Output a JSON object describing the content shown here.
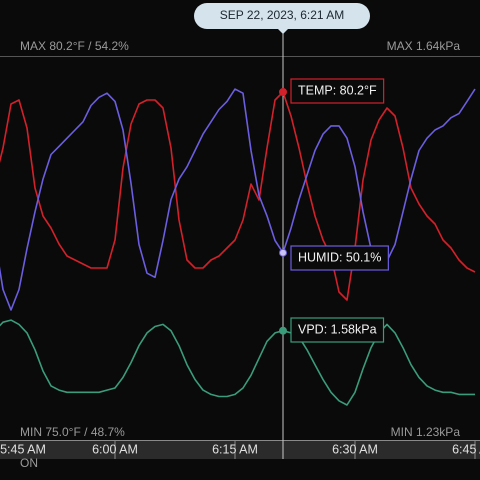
{
  "chart_data": {
    "type": "line",
    "cursor_label": "SEP 22, 2023, 6:21 AM",
    "cursor": "6:21 AM",
    "max_label": "MAX 80.2°F / 54.2%",
    "max_label_right": "MAX 1.64kPa",
    "min_label": "MIN 75.0°F / 48.7%",
    "min_label_right": "MIN 1.23kPa",
    "status": "ON",
    "x": [
      "5:45 AM",
      "5:46 AM",
      "5:47 AM",
      "5:48 AM",
      "5:49 AM",
      "5:50 AM",
      "5:51 AM",
      "5:52 AM",
      "5:53 AM",
      "5:54 AM",
      "5:55 AM",
      "5:56 AM",
      "5:57 AM",
      "5:58 AM",
      "5:59 AM",
      "6:00 AM",
      "6:01 AM",
      "6:02 AM",
      "6:03 AM",
      "6:04 AM",
      "6:05 AM",
      "6:06 AM",
      "6:07 AM",
      "6:08 AM",
      "6:09 AM",
      "6:10 AM",
      "6:11 AM",
      "6:12 AM",
      "6:13 AM",
      "6:14 AM",
      "6:15 AM",
      "6:16 AM",
      "6:17 AM",
      "6:18 AM",
      "6:19 AM",
      "6:20 AM",
      "6:21 AM",
      "6:22 AM",
      "6:23 AM",
      "6:24 AM",
      "6:25 AM",
      "6:26 AM",
      "6:27 AM",
      "6:28 AM",
      "6:29 AM",
      "6:30 AM",
      "6:31 AM",
      "6:32 AM",
      "6:33 AM",
      "6:34 AM",
      "6:35 AM",
      "6:36 AM",
      "6:37 AM",
      "6:38 AM",
      "6:39 AM",
      "6:40 AM",
      "6:41 AM",
      "6:42 AM",
      "6:43 AM",
      "6:44 AM",
      "6:45 AM"
    ],
    "xticks": [
      "5:45 AM",
      "6:00 AM",
      "6:15 AM",
      "6:30 AM",
      "6:45 AM"
    ],
    "series": [
      {
        "tooltip": "TEMP: 80.2°F",
        "color": "#d3212b",
        "ylim": [
          75.0,
          80.2
        ],
        "values": [
          78.0,
          78.8,
          79.9,
          80.0,
          79.3,
          77.8,
          77.1,
          76.8,
          76.4,
          76.1,
          76.0,
          75.9,
          75.8,
          75.8,
          75.8,
          76.5,
          78.3,
          79.4,
          79.9,
          80.0,
          80.0,
          79.8,
          78.8,
          77.0,
          76.0,
          75.8,
          75.8,
          76.0,
          76.1,
          76.3,
          76.5,
          77.0,
          77.9,
          77.5,
          78.8,
          80.0,
          80.2,
          79.6,
          78.8,
          77.9,
          77.1,
          76.5,
          76.1,
          75.2,
          75.0,
          76.3,
          78.0,
          79.0,
          79.5,
          79.8,
          79.6,
          78.8,
          77.8,
          77.4,
          77.1,
          76.9,
          76.5,
          76.3,
          76.0,
          75.8,
          75.7
        ]
      },
      {
        "tooltip": "HUMID: 50.1%",
        "color": "#6b5ee0",
        "ylim": [
          48.7,
          54.2
        ],
        "values": [
          50.4,
          49.2,
          48.7,
          49.2,
          50.2,
          51.1,
          51.9,
          52.5,
          52.7,
          52.9,
          53.1,
          53.3,
          53.7,
          53.9,
          54.0,
          53.8,
          53.1,
          51.8,
          50.3,
          49.6,
          49.5,
          50.4,
          51.4,
          51.9,
          52.2,
          52.6,
          53.0,
          53.3,
          53.6,
          53.8,
          54.1,
          54.0,
          52.6,
          51.5,
          51.0,
          50.4,
          50.1,
          50.7,
          51.4,
          52.0,
          52.6,
          53.0,
          53.2,
          53.2,
          52.9,
          52.2,
          51.1,
          50.2,
          49.8,
          49.9,
          50.3,
          51.1,
          51.9,
          52.6,
          52.9,
          53.1,
          53.2,
          53.4,
          53.5,
          53.8,
          54.1
        ]
      },
      {
        "tooltip": "VPD: 1.58kPa",
        "color": "#3b9c7c",
        "ylim": [
          1.23,
          1.64
        ],
        "values": [
          1.58,
          1.62,
          1.63,
          1.61,
          1.57,
          1.49,
          1.39,
          1.32,
          1.3,
          1.29,
          1.29,
          1.29,
          1.29,
          1.29,
          1.3,
          1.31,
          1.36,
          1.43,
          1.51,
          1.57,
          1.6,
          1.61,
          1.58,
          1.51,
          1.42,
          1.35,
          1.3,
          1.28,
          1.27,
          1.27,
          1.28,
          1.31,
          1.37,
          1.45,
          1.53,
          1.57,
          1.58,
          1.57,
          1.55,
          1.49,
          1.42,
          1.35,
          1.29,
          1.25,
          1.23,
          1.29,
          1.4,
          1.5,
          1.57,
          1.61,
          1.57,
          1.5,
          1.42,
          1.36,
          1.32,
          1.3,
          1.29,
          1.29,
          1.28,
          1.28,
          1.28
        ]
      }
    ]
  }
}
